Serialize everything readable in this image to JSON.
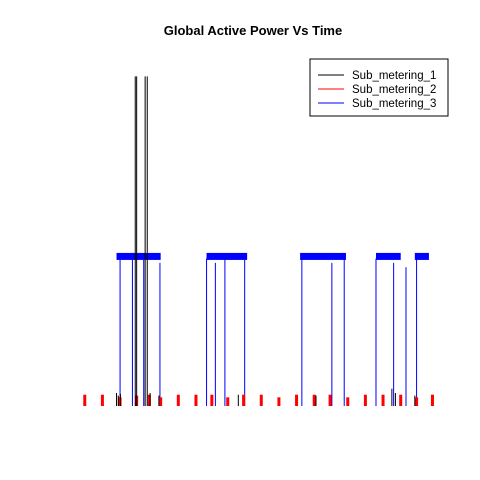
{
  "chart_data": {
    "type": "line",
    "title": "Global Active Power Vs Time",
    "xlabel": "",
    "ylabel": "",
    "axes_visible": false,
    "grid": false,
    "legend": "top-right",
    "xlim": [
      0,
      100
    ],
    "ylim": [
      0,
      40
    ],
    "series": [
      {
        "name": "Sub_metering_1",
        "color": "#000000",
        "spikes": [
          {
            "x": 9.5,
            "y": 1.5
          },
          {
            "x": 10.0,
            "y": 1.2
          },
          {
            "x": 10.6,
            "y": 1.4
          },
          {
            "x": 14.8,
            "y": 38.0
          },
          {
            "x": 15.2,
            "y": 38.0
          },
          {
            "x": 17.6,
            "y": 38.0
          },
          {
            "x": 18.2,
            "y": 38.0
          },
          {
            "x": 19.0,
            "y": 1.5
          },
          {
            "x": 21.5,
            "y": 1.2
          },
          {
            "x": 44.0,
            "y": 1.3
          },
          {
            "x": 66.0,
            "y": 1.2
          },
          {
            "x": 87.5,
            "y": 2.0
          },
          {
            "x": 88.5,
            "y": 1.5
          },
          {
            "x": 94.0,
            "y": 1.2
          }
        ]
      },
      {
        "name": "Sub_metering_2",
        "color": "#ff0000",
        "spikes": [
          {
            "x": 0.5,
            "y": 1.3
          },
          {
            "x": 5.5,
            "y": 1.3
          },
          {
            "x": 10.5,
            "y": 1.0
          },
          {
            "x": 15.2,
            "y": 1.2
          },
          {
            "x": 18.8,
            "y": 1.3
          },
          {
            "x": 22.0,
            "y": 1.0
          },
          {
            "x": 27.0,
            "y": 1.3
          },
          {
            "x": 32.0,
            "y": 1.3
          },
          {
            "x": 36.5,
            "y": 1.3
          },
          {
            "x": 41.0,
            "y": 1.0
          },
          {
            "x": 45.5,
            "y": 1.3
          },
          {
            "x": 50.5,
            "y": 1.3
          },
          {
            "x": 55.5,
            "y": 1.0
          },
          {
            "x": 60.5,
            "y": 1.3
          },
          {
            "x": 65.5,
            "y": 1.3
          },
          {
            "x": 70.0,
            "y": 1.3
          },
          {
            "x": 75.0,
            "y": 1.0
          },
          {
            "x": 80.0,
            "y": 1.3
          },
          {
            "x": 85.0,
            "y": 1.3
          },
          {
            "x": 90.0,
            "y": 1.3
          },
          {
            "x": 94.5,
            "y": 1.0
          },
          {
            "x": 99.0,
            "y": 1.3
          }
        ]
      },
      {
        "name": "Sub_metering_3",
        "color": "#0000ff",
        "spikes": [
          {
            "x": 10.5,
            "y": 17.5
          },
          {
            "x": 14.0,
            "y": 17.2
          },
          {
            "x": 17.2,
            "y": 17.0
          },
          {
            "x": 21.8,
            "y": 16.5
          },
          {
            "x": 35.0,
            "y": 17.0
          },
          {
            "x": 37.5,
            "y": 16.5
          },
          {
            "x": 40.2,
            "y": 17.5
          },
          {
            "x": 45.8,
            "y": 17.2
          },
          {
            "x": 62.0,
            "y": 17.0
          },
          {
            "x": 70.5,
            "y": 16.5
          },
          {
            "x": 74.0,
            "y": 17.0
          },
          {
            "x": 83.0,
            "y": 17.0
          },
          {
            "x": 88.0,
            "y": 16.5
          },
          {
            "x": 91.5,
            "y": 16.0
          },
          {
            "x": 94.5,
            "y": 17.0
          }
        ],
        "plateaus": [
          {
            "x0": 9.5,
            "x1": 22.0,
            "y": 17.3
          },
          {
            "x0": 35.0,
            "x1": 46.5,
            "y": 17.3
          },
          {
            "x0": 61.5,
            "x1": 74.5,
            "y": 17.3
          },
          {
            "x0": 83.0,
            "x1": 90.0,
            "y": 17.3
          },
          {
            "x0": 94.0,
            "x1": 98.0,
            "y": 17.3
          }
        ]
      }
    ]
  }
}
